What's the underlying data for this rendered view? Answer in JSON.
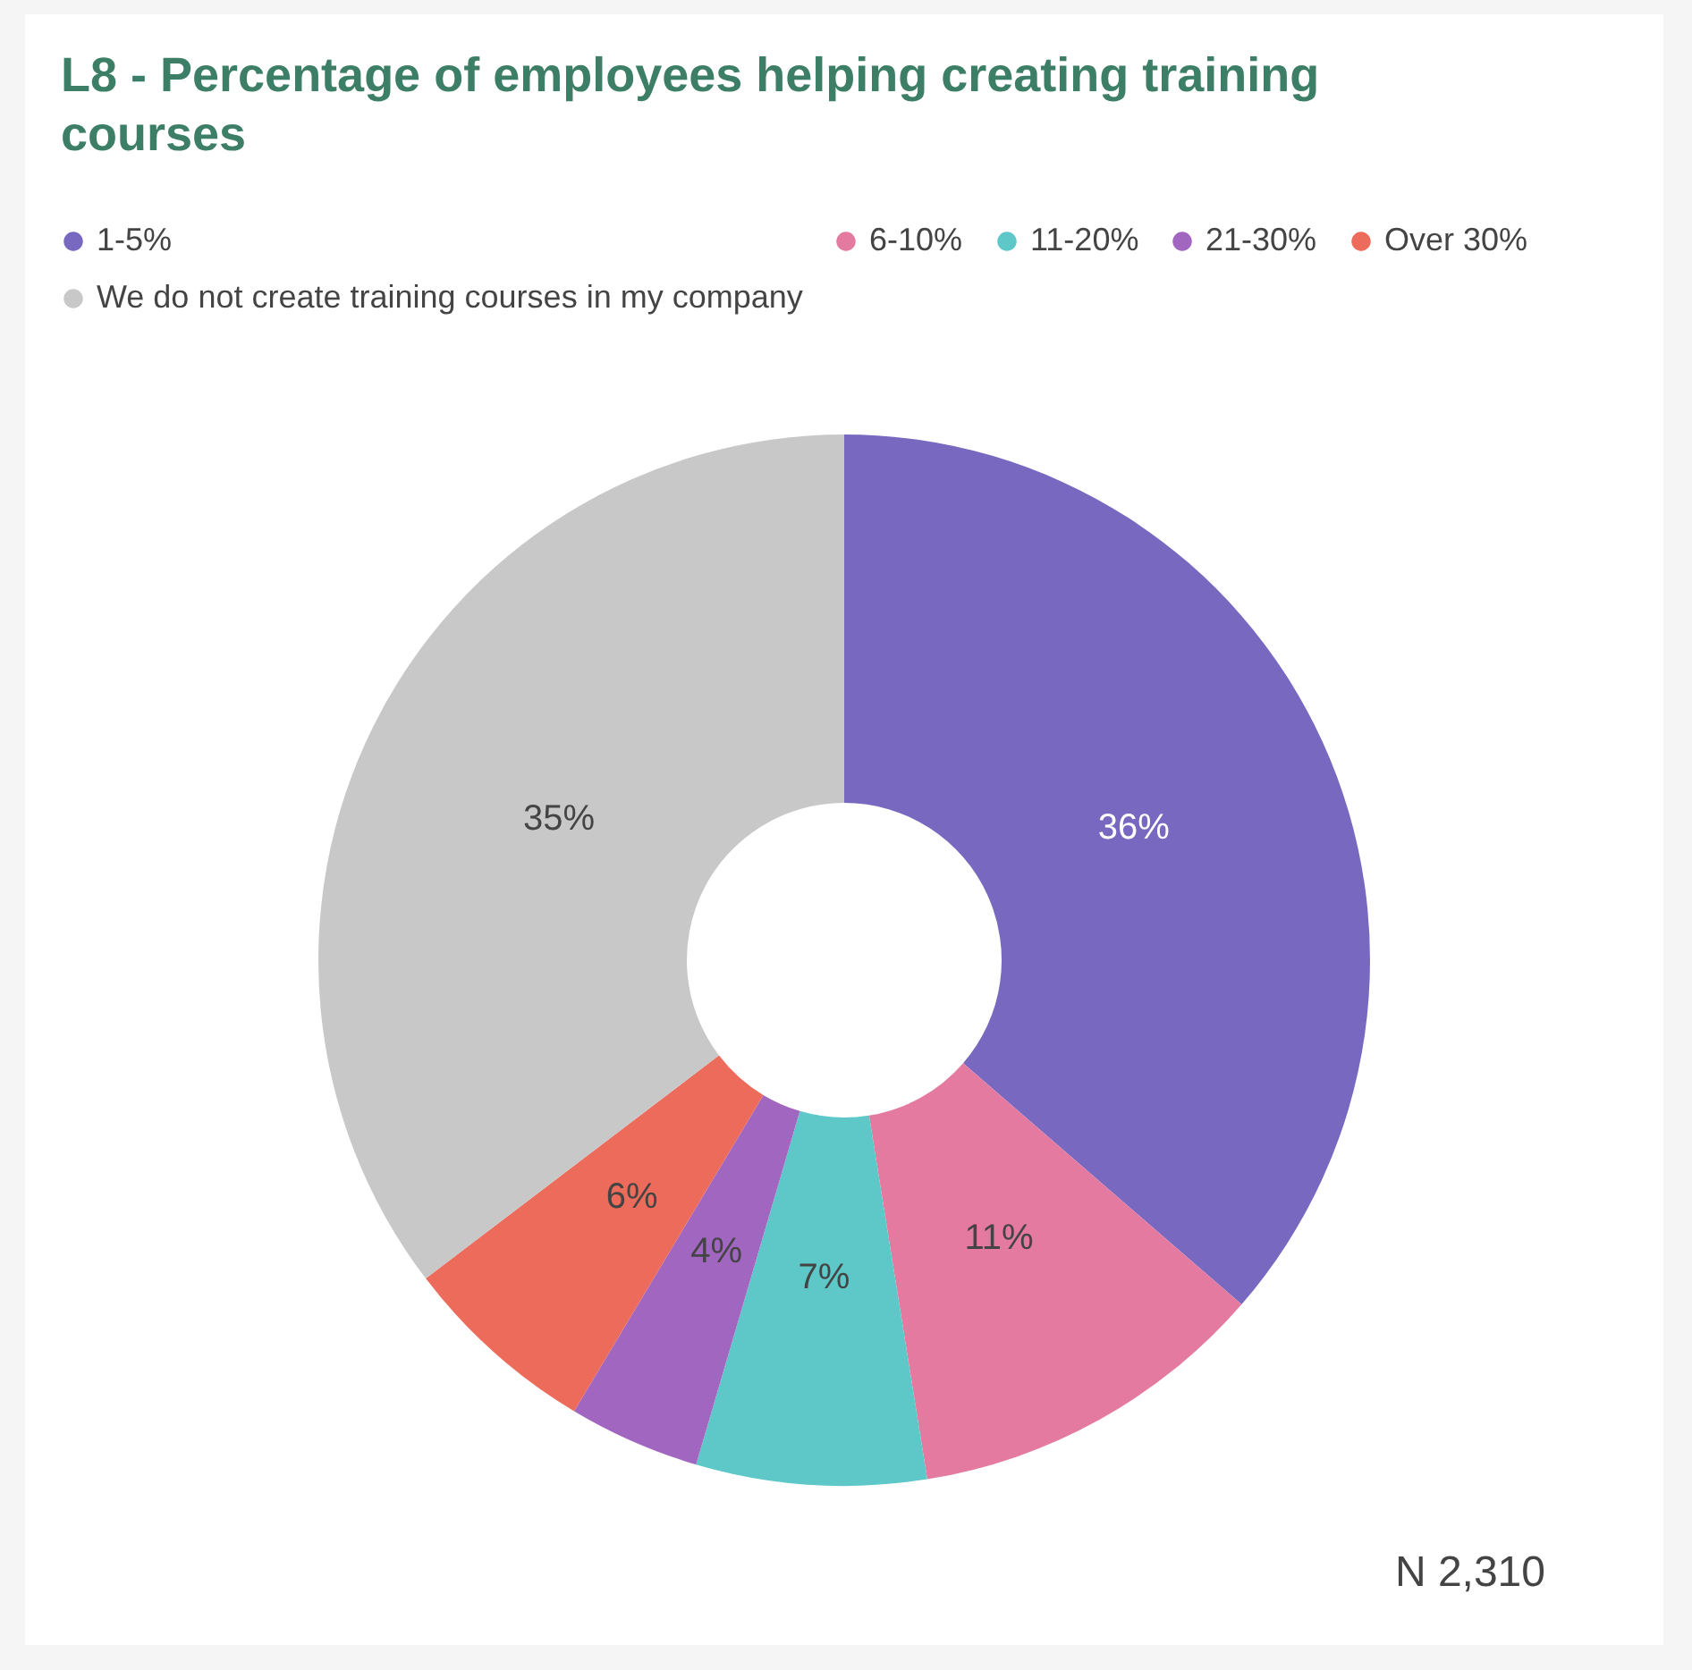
{
  "chart_data": {
    "type": "donut",
    "title": "L8 - Percentage of employees helping creating training courses",
    "categories": [
      "1-5%",
      "6-10%",
      "11-20%",
      "21-30%",
      "Over 30%",
      "We do not create training courses in my company"
    ],
    "values": [
      36,
      11,
      7,
      4,
      6,
      35
    ],
    "colors": [
      "#7868c0",
      "#e47aa0",
      "#5ec8c8",
      "#a066c0",
      "#ec6b5a",
      "#c8c8c8"
    ],
    "value_labels": [
      "36%",
      "11%",
      "7%",
      "4%",
      "6%",
      "35%"
    ],
    "legend": "top left",
    "annotations": [
      "N 2,310"
    ]
  }
}
